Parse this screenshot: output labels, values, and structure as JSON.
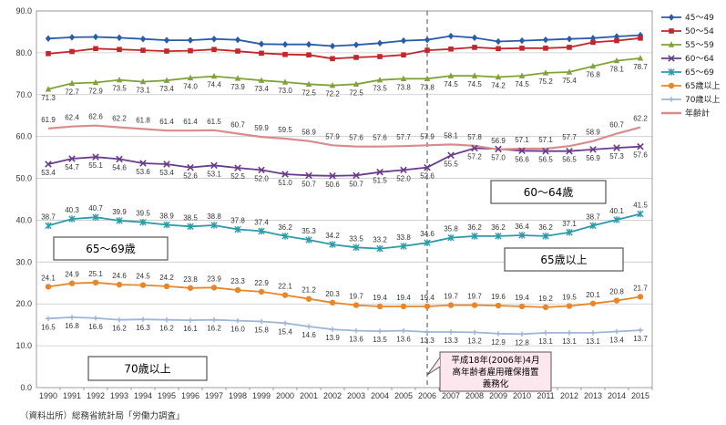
{
  "source": "（資料出所）総務省統計局「労働力調査」",
  "chart_data": {
    "type": "line",
    "x": [
      "1990",
      "1991",
      "1992",
      "1993",
      "1994",
      "1995",
      "1996",
      "1997",
      "1998",
      "1999",
      "2000",
      "2001",
      "2002",
      "2003",
      "2004",
      "2005",
      "2006",
      "2007",
      "2008",
      "2009",
      "2010",
      "2011",
      "2012",
      "2013",
      "2014",
      "2015"
    ],
    "ylim": [
      0,
      90
    ],
    "yticks": [
      "0.0",
      "10.0",
      "20.0",
      "30.0",
      "40.0",
      "50.0",
      "60.0",
      "70.0",
      "80.0",
      "90.0"
    ],
    "grid": true,
    "legend_position": "right",
    "series": [
      {
        "name": "45～49",
        "color": "#2a5caa",
        "marker": "diamond",
        "label_pos": "none",
        "values": [
          83.4,
          83.7,
          83.8,
          83.6,
          83.3,
          83.0,
          83.0,
          83.3,
          83.1,
          82.1,
          82.0,
          82.0,
          81.6,
          81.9,
          82.3,
          82.9,
          83.1,
          84.0,
          83.6,
          82.7,
          82.9,
          83.1,
          83.3,
          83.5,
          83.9,
          84.2
        ]
      },
      {
        "name": "50～54",
        "color": "#c0282c",
        "marker": "square",
        "label_pos": "none",
        "values": [
          79.8,
          80.3,
          81.0,
          80.8,
          80.6,
          80.4,
          80.5,
          80.8,
          80.4,
          79.9,
          79.6,
          79.5,
          78.6,
          78.9,
          79.1,
          79.5,
          80.6,
          80.9,
          81.3,
          81.0,
          81.1,
          81.1,
          81.3,
          82.5,
          82.9,
          83.5
        ]
      },
      {
        "name": "55～59",
        "color": "#7fa33a",
        "marker": "triangle",
        "label_pos": "below",
        "values": [
          71.3,
          72.7,
          72.9,
          73.5,
          73.1,
          73.4,
          74.0,
          74.4,
          73.9,
          73.4,
          73.0,
          72.5,
          72.2,
          72.5,
          73.5,
          73.8,
          73.8,
          74.5,
          74.5,
          74.2,
          74.5,
          75.2,
          75.4,
          76.8,
          78.1,
          78.7
        ]
      },
      {
        "name": "60～64",
        "color": "#6a3c8c",
        "marker": "x",
        "label_pos": "below",
        "values": [
          53.4,
          54.7,
          55.1,
          54.6,
          53.6,
          53.4,
          52.6,
          53.1,
          52.5,
          52.0,
          51.0,
          50.7,
          50.6,
          50.7,
          51.5,
          52.0,
          52.6,
          55.5,
          57.2,
          57.0,
          56.6,
          56.5,
          56.5,
          56.9,
          57.3,
          57.6
        ]
      },
      {
        "name": "65～69",
        "color": "#2d9aa8",
        "marker": "star",
        "label_pos": "above",
        "values": [
          38.7,
          40.3,
          40.7,
          39.9,
          39.5,
          38.9,
          38.5,
          38.8,
          37.8,
          37.4,
          36.2,
          35.3,
          34.2,
          33.5,
          33.2,
          33.8,
          34.6,
          35.8,
          36.2,
          36.2,
          36.4,
          36.2,
          37.1,
          38.7,
          40.1,
          41.5
        ]
      },
      {
        "name": "65歳以上",
        "color": "#e8862a",
        "marker": "circle",
        "label_pos": "above",
        "values": [
          24.1,
          24.9,
          25.1,
          24.6,
          24.5,
          24.2,
          23.8,
          23.9,
          23.3,
          22.9,
          22.1,
          21.2,
          20.3,
          19.7,
          19.4,
          19.4,
          19.4,
          19.7,
          19.7,
          19.6,
          19.4,
          19.2,
          19.5,
          20.1,
          20.8,
          21.7
        ]
      },
      {
        "name": "70歳以上",
        "color": "#9fb6d6",
        "marker": "plus",
        "label_pos": "below",
        "values": [
          16.5,
          16.8,
          16.6,
          16.2,
          16.3,
          16.2,
          16.1,
          16.2,
          16.0,
          15.8,
          15.4,
          14.6,
          13.9,
          13.6,
          13.5,
          13.6,
          13.3,
          13.3,
          13.2,
          12.9,
          12.8,
          13.1,
          13.1,
          13.1,
          13.4,
          13.7
        ]
      },
      {
        "name": "年齢計",
        "color": "#d98c8c",
        "marker": "none",
        "label_pos": "above",
        "values": [
          61.9,
          62.4,
          62.6,
          62.2,
          61.8,
          61.4,
          61.4,
          61.5,
          60.7,
          59.9,
          59.5,
          58.9,
          57.9,
          57.6,
          57.6,
          57.7,
          57.9,
          58.1,
          57.8,
          56.9,
          57.1,
          57.1,
          57.7,
          58.9,
          60.7,
          62.2
        ]
      }
    ],
    "annotations": {
      "vline_year": "2006",
      "box_60_64": "60～64歳",
      "box_65_69": "65～69歳",
      "box_65plus": "65歳以上",
      "box_70plus": "70歳以上",
      "law_line1": "平成18年(2006年)4月",
      "law_line2": "高年齢者雇用確保措置",
      "law_line3": "義務化"
    }
  }
}
